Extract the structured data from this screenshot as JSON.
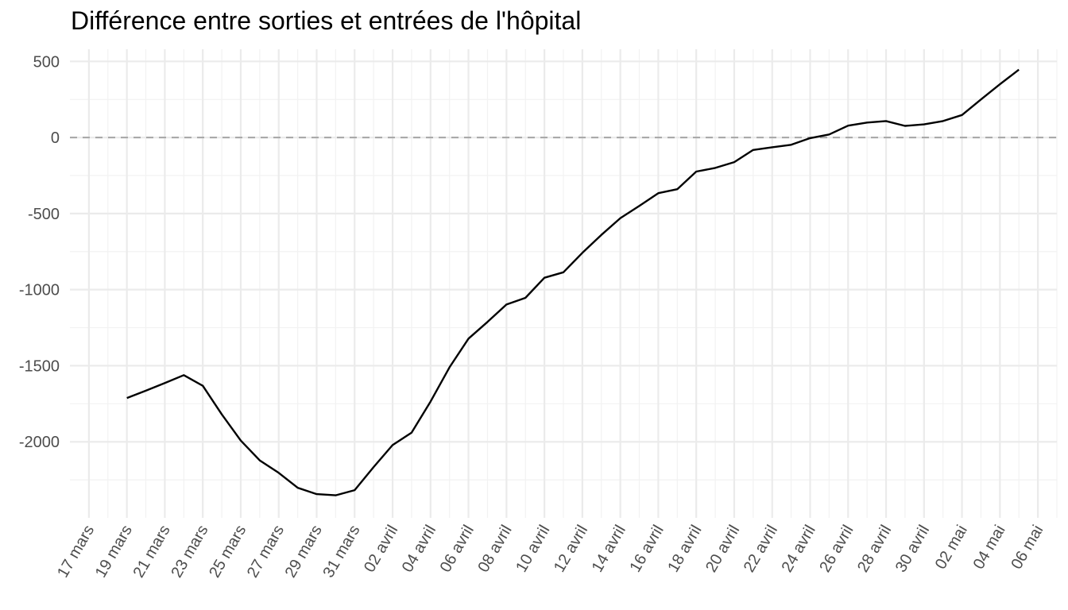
{
  "chart_data": {
    "type": "line",
    "title": "Différence entre sorties et entrées de l'hôpital",
    "xlabel": "",
    "ylabel": "",
    "xlim": [
      "2020-03-16",
      "2020-05-07"
    ],
    "ylim": [
      -2500,
      580
    ],
    "y_ticks": [
      500,
      0,
      -500,
      -1000,
      -1500,
      -2000
    ],
    "y_tick_labels": [
      "500",
      "0",
      "-500",
      "-1000",
      "-1500",
      "-2000"
    ],
    "x_tick_labels": [
      "17 mars",
      "19 mars",
      "21 mars",
      "23 mars",
      "25 mars",
      "27 mars",
      "29 mars",
      "31 mars",
      "02 avril",
      "04 avril",
      "06 avril",
      "08 avril",
      "10 avril",
      "12 avril",
      "14 avril",
      "16 avril",
      "18 avril",
      "20 avril",
      "22 avril",
      "24 avril",
      "26 avril",
      "28 avril",
      "30 avril",
      "02 mai",
      "04 mai",
      "06 mai"
    ],
    "x_tick_dates": [
      "2020-03-17",
      "2020-03-19",
      "2020-03-21",
      "2020-03-23",
      "2020-03-25",
      "2020-03-27",
      "2020-03-29",
      "2020-03-31",
      "2020-04-02",
      "2020-04-04",
      "2020-04-06",
      "2020-04-08",
      "2020-04-10",
      "2020-04-12",
      "2020-04-14",
      "2020-04-16",
      "2020-04-18",
      "2020-04-20",
      "2020-04-22",
      "2020-04-24",
      "2020-04-26",
      "2020-04-28",
      "2020-04-30",
      "2020-05-02",
      "2020-05-04",
      "2020-05-06"
    ],
    "reference_line": {
      "y": 0,
      "style": "dashed",
      "color": "#a6a6a6"
    },
    "grid": true,
    "line_color": "#000000",
    "series": [
      {
        "x": [
          "2020-03-19",
          "2020-03-20",
          "2020-03-21",
          "2020-03-22",
          "2020-03-23",
          "2020-03-24",
          "2020-03-25",
          "2020-03-26",
          "2020-03-27",
          "2020-03-28",
          "2020-03-29",
          "2020-03-30",
          "2020-03-31",
          "2020-04-01",
          "2020-04-02",
          "2020-04-03",
          "2020-04-04",
          "2020-04-05",
          "2020-04-06",
          "2020-04-07",
          "2020-04-08",
          "2020-04-09",
          "2020-04-10",
          "2020-04-11",
          "2020-04-12",
          "2020-04-13",
          "2020-04-14",
          "2020-04-15",
          "2020-04-16",
          "2020-04-17",
          "2020-04-18",
          "2020-04-19",
          "2020-04-20",
          "2020-04-21",
          "2020-04-22",
          "2020-04-23",
          "2020-04-24",
          "2020-04-25",
          "2020-04-26",
          "2020-04-27",
          "2020-04-28",
          "2020-04-29",
          "2020-04-30",
          "2020-05-01",
          "2020-05-02",
          "2020-05-03",
          "2020-05-04",
          "2020-05-05"
        ],
        "y": [
          -1712,
          -1664,
          -1614,
          -1562,
          -1632,
          -1820,
          -1992,
          -2122,
          -2204,
          -2302,
          -2344,
          -2352,
          -2318,
          -2166,
          -2022,
          -1940,
          -1736,
          -1510,
          -1322,
          -1212,
          -1098,
          -1054,
          -922,
          -886,
          -758,
          -640,
          -530,
          -450,
          -366,
          -340,
          -224,
          -200,
          -162,
          -82,
          -64,
          -48,
          -4,
          20,
          78,
          98,
          108,
          76,
          86,
          108,
          148,
          250,
          350,
          446
        ]
      }
    ]
  }
}
